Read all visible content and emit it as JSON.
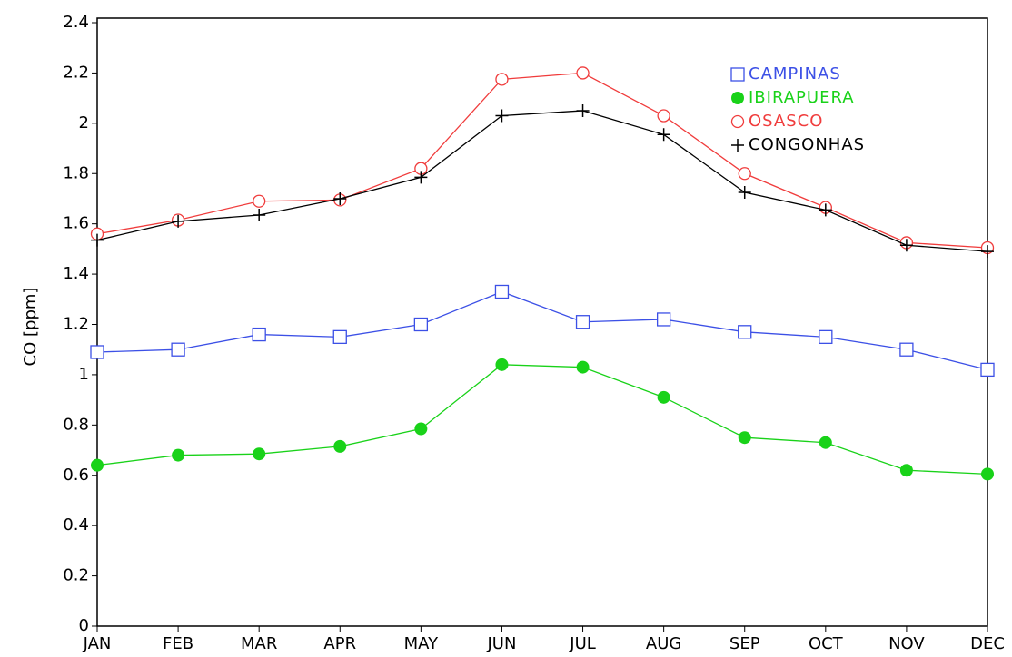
{
  "chart_data": {
    "type": "line",
    "y_label": "CO [ppm]",
    "categories": [
      "JAN",
      "FEB",
      "MAR",
      "APR",
      "MAY",
      "JUN",
      "JUL",
      "AUG",
      "SEP",
      "OCT",
      "NOV",
      "DEC"
    ],
    "ylim": [
      0,
      2.4
    ],
    "yticks": [
      0,
      0.2,
      0.4,
      0.6,
      0.8,
      1,
      1.2,
      1.4,
      1.6,
      1.8,
      2,
      2.2,
      2.4
    ],
    "grid": false,
    "legend": "upper-right",
    "series": [
      {
        "name": "CAMPINAS",
        "color": "#3c50e6",
        "marker": "square",
        "values": [
          1.09,
          1.1,
          1.16,
          1.15,
          1.2,
          1.33,
          1.21,
          1.22,
          1.17,
          1.15,
          1.1,
          1.02
        ]
      },
      {
        "name": "IBIRAPUERA",
        "color": "#19d219",
        "marker": "filled-circle",
        "values": [
          0.64,
          0.68,
          0.685,
          0.715,
          0.785,
          1.04,
          1.03,
          0.91,
          0.75,
          0.73,
          0.62,
          0.605
        ]
      },
      {
        "name": "OSASCO",
        "color": "#f03c3c",
        "marker": "circle",
        "values": [
          1.56,
          1.615,
          1.69,
          1.695,
          1.82,
          2.175,
          2.2,
          2.03,
          1.8,
          1.665,
          1.525,
          1.505
        ]
      },
      {
        "name": "CONGONHAS",
        "color": "#000000",
        "marker": "plus",
        "values": [
          1.535,
          1.61,
          1.635,
          1.7,
          1.785,
          2.03,
          2.05,
          1.955,
          1.725,
          1.655,
          1.515,
          1.49
        ]
      }
    ]
  }
}
